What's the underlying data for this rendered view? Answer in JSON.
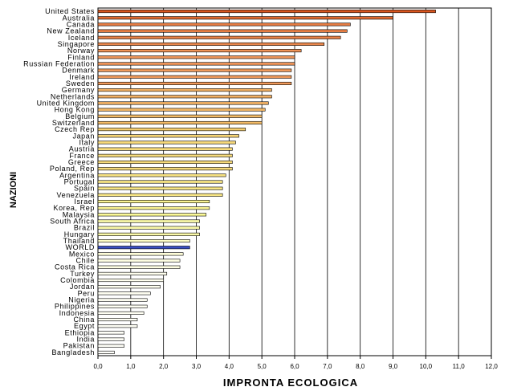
{
  "chart_data": {
    "type": "bar",
    "orientation": "horizontal",
    "xlabel": "IMPRONTA ECOLOGICA",
    "ylabel": "NAZIONI",
    "xlim": [
      0,
      12
    ],
    "x_ticks": [
      "0,0",
      "1,0",
      "2,0",
      "3,0",
      "4,0",
      "5,0",
      "6,0",
      "7,0",
      "8,0",
      "9,0",
      "10,0",
      "11,0",
      "12,0"
    ],
    "grid": "vertical",
    "categories": [
      "United States",
      "Australia",
      "Canada",
      "New Zealand",
      "Iceland",
      "Singapore",
      "Norway",
      "Finland",
      "Russian Federation",
      "Denmark",
      "Ireland",
      "Sweden",
      "Germany",
      "Netherlands",
      "United Kingdom",
      "Hong Kong",
      "Belgium",
      "Switzerland",
      "Czech Rep",
      "Japan",
      "Italy",
      "Austria",
      "France",
      "Greece",
      "Poland, Rep",
      "Argentina",
      "Portugal",
      "Spain",
      "Venezuela",
      "Israel",
      "Korea, Rep",
      "Malaysia",
      "South Africa",
      "Brazil",
      "Hungary",
      "Thailand",
      "WORLD",
      "Mexico",
      "Chile",
      "Costa Rica",
      "Turkey",
      "Colombia",
      "Jordan",
      "Peru",
      "Nigeria",
      "Philippines",
      "Indonesia",
      "China",
      "Egypt",
      "Ethiopia",
      "India",
      "Pakistan",
      "Bangladesh"
    ],
    "values": [
      10.3,
      9.0,
      7.7,
      7.6,
      7.4,
      6.9,
      6.2,
      6.0,
      6.0,
      5.9,
      5.9,
      5.9,
      5.3,
      5.3,
      5.2,
      5.1,
      5.0,
      5.0,
      4.5,
      4.3,
      4.2,
      4.1,
      4.1,
      4.1,
      4.1,
      3.9,
      3.8,
      3.8,
      3.8,
      3.4,
      3.4,
      3.3,
      3.1,
      3.1,
      3.1,
      2.8,
      2.8,
      2.6,
      2.5,
      2.5,
      2.1,
      2.0,
      1.9,
      1.6,
      1.5,
      1.5,
      1.4,
      1.2,
      1.2,
      0.8,
      0.8,
      0.8,
      0.5
    ],
    "colors": {
      "high": "#d9551e",
      "mid_high": "#f0c070",
      "mid": "#fafa9a",
      "low": "#ffffff",
      "highlight": "#3a4fc4",
      "grid": "#000000"
    }
  }
}
